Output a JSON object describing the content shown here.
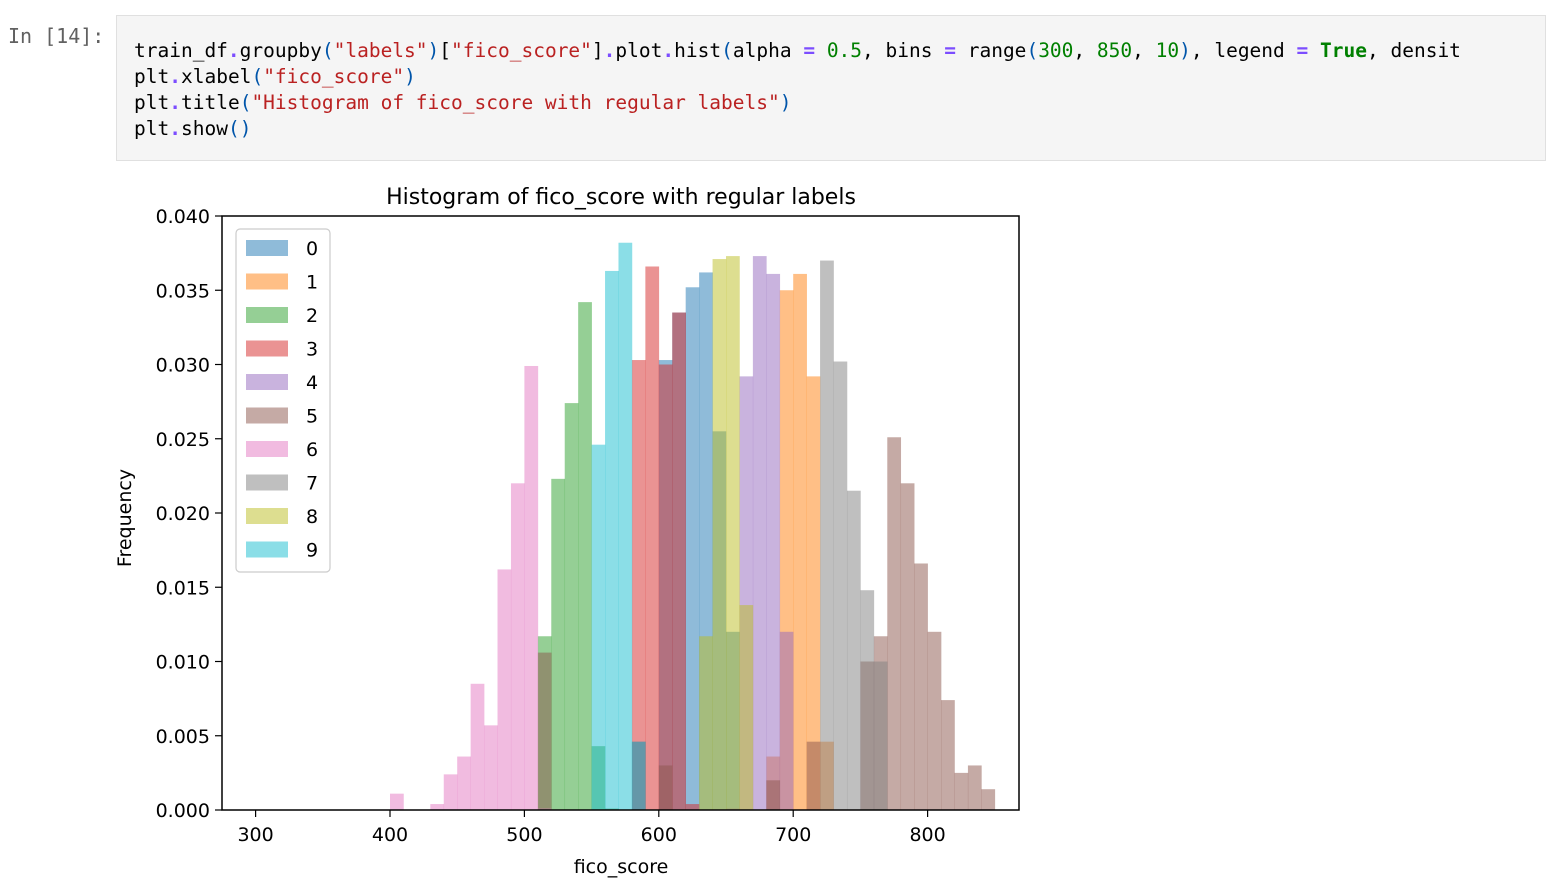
{
  "cell": {
    "prompt": "In [14]:",
    "code_lines": [
      [
        {
          "t": "train_df"
        },
        {
          "t": ".",
          "c": "c-op"
        },
        {
          "t": "groupby"
        },
        {
          "t": "(",
          "c": "c-p"
        },
        {
          "t": "\"labels\"",
          "c": "c-str"
        },
        {
          "t": ")",
          "c": "c-p"
        },
        {
          "t": "["
        },
        {
          "t": "\"fico_score\"",
          "c": "c-str"
        },
        {
          "t": "]"
        },
        {
          "t": ".",
          "c": "c-op"
        },
        {
          "t": "plot"
        },
        {
          "t": ".",
          "c": "c-op"
        },
        {
          "t": "hist"
        },
        {
          "t": "(",
          "c": "c-p"
        },
        {
          "t": "alpha "
        },
        {
          "t": "=",
          "c": "c-op"
        },
        {
          "t": " "
        },
        {
          "t": "0.5",
          "c": "c-num"
        },
        {
          "t": ", bins "
        },
        {
          "t": "=",
          "c": "c-op"
        },
        {
          "t": " range"
        },
        {
          "t": "(",
          "c": "c-p"
        },
        {
          "t": "300",
          "c": "c-num"
        },
        {
          "t": ", "
        },
        {
          "t": "850",
          "c": "c-num"
        },
        {
          "t": ", "
        },
        {
          "t": "10",
          "c": "c-num"
        },
        {
          "t": ")",
          "c": "c-p"
        },
        {
          "t": ", legend "
        },
        {
          "t": "=",
          "c": "c-op"
        },
        {
          "t": " "
        },
        {
          "t": "True",
          "c": "c-kw"
        },
        {
          "t": ", densit"
        }
      ],
      [
        {
          "t": "plt"
        },
        {
          "t": ".",
          "c": "c-op"
        },
        {
          "t": "xlabel"
        },
        {
          "t": "(",
          "c": "c-p"
        },
        {
          "t": "\"fico_score\"",
          "c": "c-str"
        },
        {
          "t": ")",
          "c": "c-p"
        }
      ],
      [
        {
          "t": "plt"
        },
        {
          "t": ".",
          "c": "c-op"
        },
        {
          "t": "title"
        },
        {
          "t": "(",
          "c": "c-p"
        },
        {
          "t": "\"Histogram of fico_score with regular labels\"",
          "c": "c-str"
        },
        {
          "t": ")",
          "c": "c-p"
        }
      ],
      [
        {
          "t": "plt"
        },
        {
          "t": ".",
          "c": "c-op"
        },
        {
          "t": "show"
        },
        {
          "t": "()",
          "c": "c-p"
        }
      ]
    ]
  },
  "chart_data": {
    "type": "bar",
    "title": "Histogram of fico_score with regular labels",
    "xlabel": "fico_score",
    "ylabel": "Frequency",
    "xlim": [
      275,
      868
    ],
    "ylim": [
      0,
      0.04
    ],
    "xticks": [
      300,
      400,
      500,
      600,
      700,
      800
    ],
    "yticks": [
      0.0,
      0.005,
      0.01,
      0.015,
      0.02,
      0.025,
      0.03,
      0.035,
      0.04
    ],
    "ytick_labels": [
      "0.000",
      "0.005",
      "0.010",
      "0.015",
      "0.020",
      "0.025",
      "0.030",
      "0.035",
      "0.040"
    ],
    "bin_width": 10,
    "alpha": 0.5,
    "legend_position": "upper left",
    "series": [
      {
        "name": "0",
        "color": "#1f77b4",
        "bins": [
          {
            "x": 580,
            "y": 0.0046
          },
          {
            "x": 600,
            "y": 0.0303
          },
          {
            "x": 610,
            "y": 0.0335
          },
          {
            "x": 620,
            "y": 0.0352
          },
          {
            "x": 630,
            "y": 0.0362
          },
          {
            "x": 640,
            "y": 0.0255
          },
          {
            "x": 650,
            "y": 0.012
          }
        ]
      },
      {
        "name": "1",
        "color": "#ff7f0e",
        "bins": [
          {
            "x": 680,
            "y": 0.0036
          },
          {
            "x": 690,
            "y": 0.035
          },
          {
            "x": 700,
            "y": 0.0361
          },
          {
            "x": 710,
            "y": 0.0292
          },
          {
            "x": 720,
            "y": 0.0046
          }
        ]
      },
      {
        "name": "2",
        "color": "#2ca02c",
        "bins": [
          {
            "x": 510,
            "y": 0.0117
          },
          {
            "x": 520,
            "y": 0.0223
          },
          {
            "x": 530,
            "y": 0.0274
          },
          {
            "x": 540,
            "y": 0.0342
          },
          {
            "x": 550,
            "y": 0.0043
          },
          {
            "x": 560,
            "y": 0.0001
          }
        ]
      },
      {
        "name": "3",
        "color": "#d62728",
        "bins": [
          {
            "x": 580,
            "y": 0.0303
          },
          {
            "x": 590,
            "y": 0.0366
          },
          {
            "x": 600,
            "y": 0.03
          },
          {
            "x": 610,
            "y": 0.0335
          },
          {
            "x": 620,
            "y": 0.0004
          }
        ]
      },
      {
        "name": "4",
        "color": "#9467bd",
        "bins": [
          {
            "x": 650,
            "y": 0.0001
          },
          {
            "x": 660,
            "y": 0.0292
          },
          {
            "x": 670,
            "y": 0.0373
          },
          {
            "x": 680,
            "y": 0.0361
          },
          {
            "x": 690,
            "y": 0.012
          }
        ]
      },
      {
        "name": "5",
        "color": "#8c564b",
        "bins": [
          {
            "x": 510,
            "y": 0.0106
          },
          {
            "x": 600,
            "y": 0.003
          },
          {
            "x": 680,
            "y": 0.002
          },
          {
            "x": 710,
            "y": 0.0046
          },
          {
            "x": 750,
            "y": 0.01
          },
          {
            "x": 760,
            "y": 0.0117
          },
          {
            "x": 770,
            "y": 0.0251
          },
          {
            "x": 780,
            "y": 0.022
          },
          {
            "x": 790,
            "y": 0.0166
          },
          {
            "x": 800,
            "y": 0.012
          },
          {
            "x": 810,
            "y": 0.0074
          },
          {
            "x": 820,
            "y": 0.0025
          },
          {
            "x": 830,
            "y": 0.003
          },
          {
            "x": 840,
            "y": 0.0014
          }
        ]
      },
      {
        "name": "6",
        "color": "#e377c2",
        "bins": [
          {
            "x": 400,
            "y": 0.0011
          },
          {
            "x": 430,
            "y": 0.0004
          },
          {
            "x": 440,
            "y": 0.0024
          },
          {
            "x": 450,
            "y": 0.0036
          },
          {
            "x": 460,
            "y": 0.0085
          },
          {
            "x": 470,
            "y": 0.0057
          },
          {
            "x": 480,
            "y": 0.0162
          },
          {
            "x": 490,
            "y": 0.022
          },
          {
            "x": 500,
            "y": 0.0299
          },
          {
            "x": 510,
            "y": 0.0001
          }
        ]
      },
      {
        "name": "7",
        "color": "#7f7f7f",
        "bins": [
          {
            "x": 720,
            "y": 0.037
          },
          {
            "x": 730,
            "y": 0.0302
          },
          {
            "x": 740,
            "y": 0.0215
          },
          {
            "x": 750,
            "y": 0.0148
          },
          {
            "x": 760,
            "y": 0.01
          }
        ]
      },
      {
        "name": "8",
        "color": "#bcbd22",
        "bins": [
          {
            "x": 630,
            "y": 0.0117
          },
          {
            "x": 640,
            "y": 0.0371
          },
          {
            "x": 650,
            "y": 0.0373
          },
          {
            "x": 660,
            "y": 0.0138
          }
        ]
      },
      {
        "name": "9",
        "color": "#17becf",
        "bins": [
          {
            "x": 550,
            "y": 0.0246
          },
          {
            "x": 560,
            "y": 0.0363
          },
          {
            "x": 570,
            "y": 0.0382
          },
          {
            "x": 580,
            "y": 0.0046
          }
        ]
      }
    ]
  }
}
